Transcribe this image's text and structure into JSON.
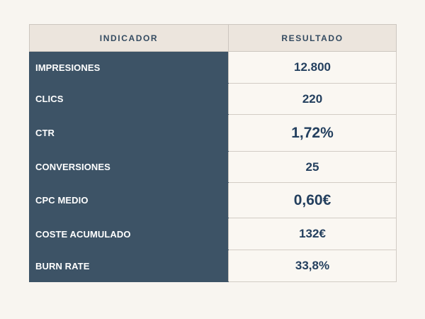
{
  "table": {
    "headers": {
      "indicator": "INDICADOR",
      "result": "RESULTADO"
    },
    "rows": [
      {
        "label": "IMPRESIONES",
        "value": "12.800"
      },
      {
        "label": "CLICS",
        "value": "220"
      },
      {
        "label": "CTR",
        "value": "1,72%"
      },
      {
        "label": "CONVERSIONES",
        "value": "25"
      },
      {
        "label": "CPC MEDIO",
        "value": "0,60€"
      },
      {
        "label": "COSTE ACUMULADO",
        "value": "132€"
      },
      {
        "label": "BURN RATE",
        "value": "33,8%"
      }
    ]
  },
  "colors": {
    "page_background": "#f8f5f0",
    "header_background": "#ece5dd",
    "label_background": "#3d5366",
    "value_text": "#233f5e"
  }
}
